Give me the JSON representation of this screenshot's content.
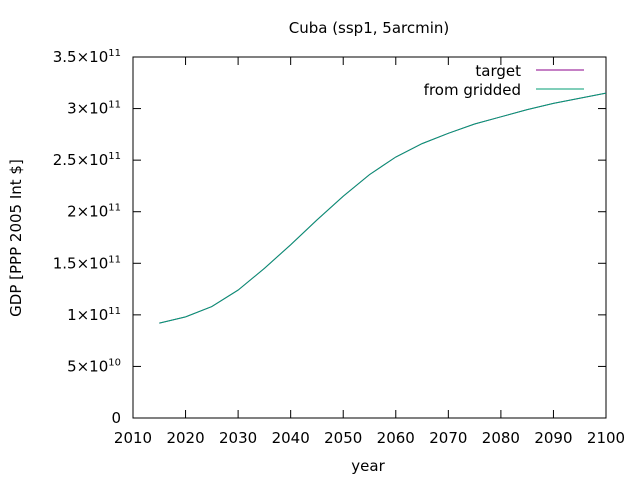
{
  "chart_data": {
    "type": "line",
    "title": "Cuba (ssp1, 5arcmin)",
    "xlabel": "year",
    "ylabel": "GDP [PPP 2005 Int $]",
    "xlim": [
      2010,
      2100
    ],
    "ylim": [
      0,
      350000000000
    ],
    "xticks": [
      "2010",
      "2020",
      "2030",
      "2040",
      "2050",
      "2060",
      "2070",
      "2080",
      "2090",
      "2100"
    ],
    "yticks": [
      {
        "value": 0,
        "mant": "0",
        "exp": ""
      },
      {
        "value": 50000000000,
        "mant": "5×10",
        "exp": "10"
      },
      {
        "value": 100000000000,
        "mant": "1×10",
        "exp": "11"
      },
      {
        "value": 150000000000,
        "mant": "1.5×10",
        "exp": "11"
      },
      {
        "value": 200000000000,
        "mant": "2×10",
        "exp": "11"
      },
      {
        "value": 250000000000,
        "mant": "2.5×10",
        "exp": "11"
      },
      {
        "value": 300000000000,
        "mant": "3×10",
        "exp": "11"
      },
      {
        "value": 350000000000,
        "mant": "3.5×10",
        "exp": "11"
      }
    ],
    "grid": false,
    "legend_position": "top-right",
    "series": [
      {
        "name": "target",
        "color": "#8b008b",
        "x": [
          2015,
          2020,
          2025,
          2030,
          2035,
          2040,
          2045,
          2050,
          2055,
          2060,
          2065,
          2070,
          2075,
          2080,
          2085,
          2090,
          2095,
          2100
        ],
        "y": [
          92000000000,
          98000000000,
          108000000000,
          124000000000,
          145000000000,
          168000000000,
          192000000000,
          215000000000,
          236000000000,
          253000000000,
          266000000000,
          276000000000,
          285000000000,
          292000000000,
          299000000000,
          305000000000,
          310000000000,
          315000000000
        ]
      },
      {
        "name": "from gridded",
        "color": "#009e73",
        "x": [
          2015,
          2020,
          2025,
          2030,
          2035,
          2040,
          2045,
          2050,
          2055,
          2060,
          2065,
          2070,
          2075,
          2080,
          2085,
          2090,
          2095,
          2100
        ],
        "y": [
          92000000000,
          98000000000,
          108000000000,
          124000000000,
          145000000000,
          168000000000,
          192000000000,
          215000000000,
          236000000000,
          253000000000,
          266000000000,
          276000000000,
          285000000000,
          292000000000,
          299000000000,
          305000000000,
          310000000000,
          315000000000
        ]
      }
    ]
  }
}
